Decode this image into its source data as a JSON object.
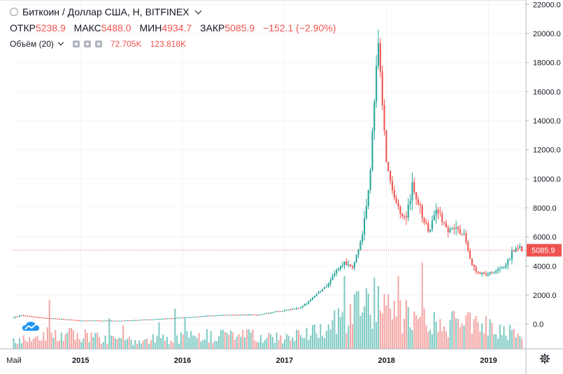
{
  "header": {
    "title": "Биткоин / Доллар США, Н, BITFINEX",
    "ohlc": {
      "open_label": "ОТКР",
      "open": "5238.9",
      "high_label": "МАКС",
      "high": "5488.0",
      "low_label": "МИН",
      "low": "4934.7",
      "close_label": "ЗАКР",
      "close": "5085.9",
      "change": "−152.1 (−2.90%)"
    },
    "volume": {
      "label": "Объём (20)",
      "value_a": "72.705K",
      "value_b": "123.818K"
    }
  },
  "colors": {
    "up": "#26a69a",
    "down": "#ef5350",
    "vol_up": "#80cbc4",
    "vol_down": "#f4a7a5",
    "price_tag": "#ef5350"
  },
  "icons": [
    "circle-icon",
    "chevron-down-icon",
    "eye-icon",
    "settings-icon",
    "close-icon",
    "gear-icon",
    "cloud-logo-icon"
  ],
  "chart_data": {
    "type": "candlestick",
    "title": "Биткоин / Доллар США, Н, BITFINEX",
    "x_tick_labels": [
      "Май",
      "2015",
      "2016",
      "2017",
      "2018",
      "2019"
    ],
    "y_tick_labels": [
      "22000.0",
      "20000.0",
      "18000.0",
      "16000.0",
      "14000.0",
      "12000.0",
      "10000.0",
      "8000.0",
      "6000.0",
      "4000.0",
      "2000.0",
      "0.0"
    ],
    "ylim": [
      -1700,
      22300
    ],
    "last_price": {
      "value": 5085.9,
      "label": "5085.9"
    },
    "grid": true,
    "price_anchors": [
      [
        "2014-05",
        450
      ],
      [
        "2014-06",
        600
      ],
      [
        "2014-09",
        420
      ],
      [
        "2015-01",
        250
      ],
      [
        "2015-06",
        240
      ],
      [
        "2015-11",
        380
      ],
      [
        "2016-06",
        650
      ],
      [
        "2016-10",
        640
      ],
      [
        "2017-01",
        950
      ],
      [
        "2017-03",
        1150
      ],
      [
        "2017-05",
        2200
      ],
      [
        "2017-06",
        2700
      ],
      [
        "2017-08",
        4300
      ],
      [
        "2017-09",
        4000
      ],
      [
        "2017-10",
        5800
      ],
      [
        "2017-11",
        9800
      ],
      [
        "2017-12",
        19500
      ],
      [
        "2018-01",
        11200
      ],
      [
        "2018-02",
        8500
      ],
      [
        "2018-03",
        7000
      ],
      [
        "2018-04",
        9300
      ],
      [
        "2018-06",
        6200
      ],
      [
        "2018-07",
        8000
      ],
      [
        "2018-08",
        6500
      ],
      [
        "2018-10",
        6400
      ],
      [
        "2018-11",
        4000
      ],
      [
        "2018-12",
        3400
      ],
      [
        "2019-02",
        3600
      ],
      [
        "2019-03",
        4100
      ],
      [
        "2019-04",
        5100
      ]
    ],
    "volume_anchors": [
      [
        "2014-05",
        0.12
      ],
      [
        "2014-12",
        0.2
      ],
      [
        "2015-06",
        0.1
      ],
      [
        "2015-12",
        0.15
      ],
      [
        "2016-06",
        0.2
      ],
      [
        "2017-01",
        0.15
      ],
      [
        "2017-06",
        0.3
      ],
      [
        "2017-09",
        0.5
      ],
      [
        "2017-12",
        0.65
      ],
      [
        "2018-03",
        0.45
      ],
      [
        "2018-08",
        0.3
      ],
      [
        "2018-11",
        0.45
      ],
      [
        "2019-04",
        0.2
      ]
    ]
  }
}
